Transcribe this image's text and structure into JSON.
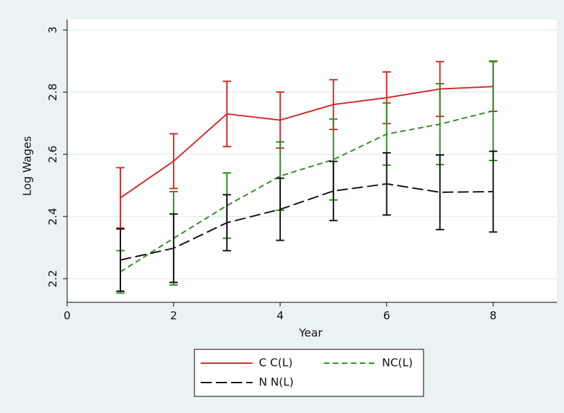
{
  "chart_data": {
    "type": "line",
    "x_label": "Year",
    "y_label": "Log Wages",
    "xlim": [
      0,
      9.2
    ],
    "xticks": [
      0,
      2,
      4,
      6,
      8
    ],
    "ylim": [
      2.124,
      3.034
    ],
    "yticks": [
      2.2,
      2.4,
      2.6,
      2.8,
      3
    ],
    "grid": true,
    "legend": "bottom",
    "x": [
      1,
      2,
      3,
      4,
      5,
      6,
      7,
      8
    ],
    "series": [
      {
        "name": "C C(L)",
        "color": "#d62728",
        "dash": "solid",
        "values": [
          2.46,
          2.578,
          2.73,
          2.71,
          2.76,
          2.782,
          2.81,
          2.818
        ],
        "errors": [
          0.097,
          0.088,
          0.105,
          0.09,
          0.08,
          0.083,
          0.088,
          0.08
        ]
      },
      {
        "name": "NC(L)",
        "color": "#2e8b22",
        "dash": "dashed",
        "values": [
          2.222,
          2.33,
          2.435,
          2.53,
          2.583,
          2.665,
          2.697,
          2.74
        ],
        "errors": [
          0.068,
          0.15,
          0.105,
          0.11,
          0.13,
          0.1,
          0.13,
          0.16
        ]
      },
      {
        "name": "N N(L)",
        "color": "#111111",
        "dash": "longdash",
        "values": [
          2.26,
          2.298,
          2.38,
          2.423,
          2.482,
          2.505,
          2.478,
          2.48
        ],
        "errors": [
          0.1,
          0.11,
          0.09,
          0.1,
          0.095,
          0.1,
          0.12,
          0.13
        ]
      }
    ]
  }
}
